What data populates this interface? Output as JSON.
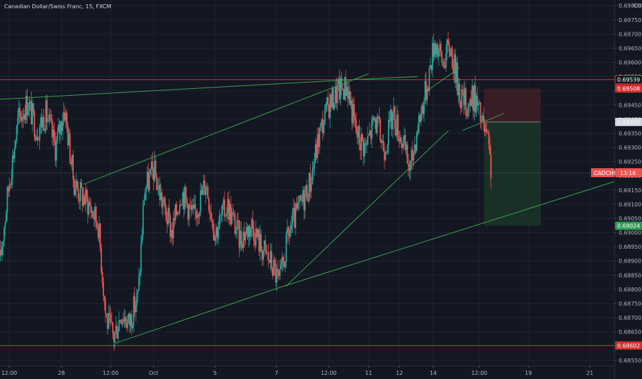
{
  "header": {
    "title": "Canadian Dollar/Swiss Franc, 15, FXCM"
  },
  "colors": {
    "background": "#131722",
    "grid": "#1f2330",
    "bull": "#26a69a",
    "bear": "#ef5350",
    "trendline": "#3f9f4f",
    "level": "#d32f2f",
    "axis_text": "#b2b5be",
    "stop_zone": "#3c1f26",
    "target_zone": "#1b3327"
  },
  "chart_data": {
    "type": "candlestick",
    "symbol": "CADCHF",
    "currency": "CHF",
    "timeframe": "15",
    "ylim": [
      0.6853,
      0.6982
    ],
    "y_ticks": [
      "0.69800",
      "0.69750",
      "0.69700",
      "0.69650",
      "0.69600",
      "0.69550",
      "0.69500",
      "0.69450",
      "0.69400",
      "0.69350",
      "0.69300",
      "0.69250",
      "0.69200",
      "0.69150",
      "0.69100",
      "0.69050",
      "0.69000",
      "0.68950",
      "0.68900",
      "0.68850",
      "0.68800",
      "0.68750",
      "0.68700",
      "0.68650",
      "0.68600",
      "0.68550"
    ],
    "x_ticks": [
      {
        "label": "12:00",
        "t": 0.3
      },
      {
        "label": "28",
        "t": 2.0
      },
      {
        "label": "12:00",
        "t": 3.6
      },
      {
        "label": "Oct",
        "t": 5.0
      },
      {
        "label": "5",
        "t": 7.0
      },
      {
        "label": "7",
        "t": 9.0
      },
      {
        "label": "12:00",
        "t": 10.7
      },
      {
        "label": "11",
        "t": 12.0
      },
      {
        "label": "12",
        "t": 13.0
      },
      {
        "label": "14",
        "t": 14.1
      },
      {
        "label": "12:00",
        "t": 15.6
      },
      {
        "label": "19",
        "t": 17.2
      },
      {
        "label": "21",
        "t": 19.2
      }
    ],
    "x_range": [
      0.0,
      20.0
    ],
    "price_path": [
      [
        0.0,
        0.689
      ],
      [
        0.3,
        0.6918
      ],
      [
        0.6,
        0.694
      ],
      [
        0.9,
        0.6946
      ],
      [
        1.2,
        0.6936
      ],
      [
        1.5,
        0.6942
      ],
      [
        1.8,
        0.693
      ],
      [
        2.1,
        0.6944
      ],
      [
        2.4,
        0.6918
      ],
      [
        2.6,
        0.6914
      ],
      [
        2.9,
        0.691
      ],
      [
        3.2,
        0.6903
      ],
      [
        3.45,
        0.687
      ],
      [
        3.7,
        0.6863
      ],
      [
        3.95,
        0.6872
      ],
      [
        4.2,
        0.6868
      ],
      [
        4.5,
        0.6878
      ],
      [
        4.7,
        0.6915
      ],
      [
        5.0,
        0.6922
      ],
      [
        5.3,
        0.691
      ],
      [
        5.6,
        0.69
      ],
      [
        5.9,
        0.6915
      ],
      [
        6.3,
        0.6905
      ],
      [
        6.7,
        0.6918
      ],
      [
        7.0,
        0.69
      ],
      [
        7.4,
        0.691
      ],
      [
        7.8,
        0.6898
      ],
      [
        8.2,
        0.6903
      ],
      [
        8.5,
        0.6895
      ],
      [
        8.8,
        0.689
      ],
      [
        9.1,
        0.6882
      ],
      [
        9.4,
        0.69
      ],
      [
        9.8,
        0.691
      ],
      [
        10.1,
        0.6918
      ],
      [
        10.4,
        0.6935
      ],
      [
        10.7,
        0.6945
      ],
      [
        11.0,
        0.695
      ],
      [
        11.3,
        0.6952
      ],
      [
        11.6,
        0.6935
      ],
      [
        11.9,
        0.693
      ],
      [
        12.2,
        0.694
      ],
      [
        12.5,
        0.693
      ],
      [
        12.8,
        0.6942
      ],
      [
        13.1,
        0.6932
      ],
      [
        13.35,
        0.6922
      ],
      [
        13.6,
        0.6938
      ],
      [
        13.9,
        0.6952
      ],
      [
        14.15,
        0.6968
      ],
      [
        14.4,
        0.696
      ],
      [
        14.65,
        0.6966
      ],
      [
        14.8,
        0.6958
      ],
      [
        15.0,
        0.6948
      ],
      [
        15.2,
        0.6945
      ],
      [
        15.45,
        0.6948
      ],
      [
        15.65,
        0.694
      ],
      [
        15.85,
        0.6933
      ],
      [
        16.0,
        0.6921
      ]
    ],
    "horizontal_levels": [
      {
        "price": 0.69539,
        "label": "0.69539",
        "color": "#d32f2f"
      },
      {
        "price": 0.68602,
        "label": "0.68602",
        "color": "#d32f2f"
      }
    ],
    "trendlines": [
      {
        "from": [
          0.0,
          0.6947
        ],
        "to": [
          11.6,
          0.6954
        ]
      },
      {
        "from": [
          11.6,
          0.6954
        ],
        "to": [
          13.6,
          0.6955
        ]
      },
      {
        "from": [
          2.7,
          0.6917
        ],
        "to": [
          12.0,
          0.6956
        ]
      },
      {
        "from": [
          3.75,
          0.6861
        ],
        "to": [
          9.2,
          0.6881
        ]
      },
      {
        "from": [
          9.2,
          0.6881
        ],
        "to": [
          20.0,
          0.6918
        ]
      },
      {
        "from": [
          9.3,
          0.6881
        ],
        "to": [
          14.6,
          0.6936
        ]
      },
      {
        "from": [
          15.05,
          0.6936
        ],
        "to": [
          16.4,
          0.6942
        ]
      },
      {
        "from": [
          14.95,
          0.6958
        ],
        "to": [
          13.9,
          0.695
        ]
      }
    ],
    "position": {
      "x_start": 15.75,
      "x_end": 17.6,
      "stop": 0.69508,
      "entry": 0.6939,
      "target": 0.69024
    },
    "current_price_line": 0.6921,
    "price_badges": [
      {
        "price": 0.69539,
        "text": "0.69539",
        "color": "#ffffff",
        "bg": "#131722",
        "border": "#d32f2f"
      },
      {
        "price": 0.69508,
        "text": "0.69508",
        "color": "#ffffff",
        "bg": "#d32f2f"
      },
      {
        "price": 0.6939,
        "text": "0.69390",
        "color": "#131722",
        "bg": "#d1d4dc"
      },
      {
        "price": 0.69024,
        "text": "0.69024",
        "color": "#ffffff",
        "bg": "#2e9d52"
      },
      {
        "price": 0.68602,
        "text": "0.68602",
        "color": "#ffffff",
        "bg": "#d32f2f"
      }
    ],
    "symbol_badge": {
      "price": 0.6921,
      "symbol": "CADCHF",
      "countdown": "13:16",
      "bg": "#ef5350"
    }
  }
}
